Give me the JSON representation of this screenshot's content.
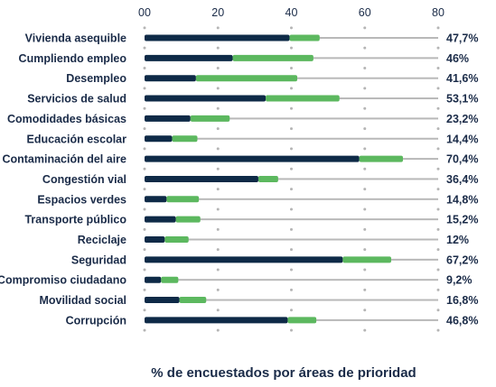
{
  "chart_data": {
    "type": "bar",
    "orientation": "horizontal",
    "stacked": true,
    "xlabel": "% de encuestados por áreas de prioridad",
    "xlim": [
      0,
      80
    ],
    "x_ticks": [
      "00",
      "20",
      "40",
      "60",
      "80"
    ],
    "legend": "none",
    "grid": "dotted vertical",
    "categories": [
      "Vivienda asequible",
      "Cumpliendo empleo",
      "Desempleo",
      "Servicios de salud",
      "Comodidades básicas",
      "Educación escolar",
      "Contaminación del aire",
      "Congestión vial",
      "Espacios verdes",
      "Transporte público",
      "Reciclaje",
      "Seguridad",
      "Compromiso ciudadano",
      "Movilidad social",
      "Corrupción"
    ],
    "series": [
      {
        "color": "#0e2a47",
        "values": [
          39.5,
          24,
          14,
          33,
          12.5,
          7.5,
          58.5,
          31,
          6,
          8.5,
          5.5,
          54,
          4.5,
          9.5,
          39
        ]
      },
      {
        "color": "#5cb85f",
        "values": [
          8.2,
          22,
          27.6,
          20.1,
          10.7,
          6.9,
          11.9,
          5.4,
          8.8,
          6.7,
          6.5,
          13.2,
          4.7,
          7.3,
          7.8
        ]
      }
    ],
    "totals": [
      47.7,
      46,
      41.6,
      53.1,
      23.2,
      14.4,
      70.4,
      36.4,
      14.8,
      15.2,
      12,
      67.2,
      9.2,
      16.8,
      46.8
    ],
    "value_labels": [
      "47,7%",
      "46%",
      "41,6%",
      "53,1%",
      "23,2%",
      "14,4%",
      "70,4%",
      "36,4%",
      "14,8%",
      "15,2%",
      "12%",
      "67,2%",
      "9,2%",
      "16,8%",
      "46,8%"
    ],
    "track_color": "#b8b8b8"
  }
}
